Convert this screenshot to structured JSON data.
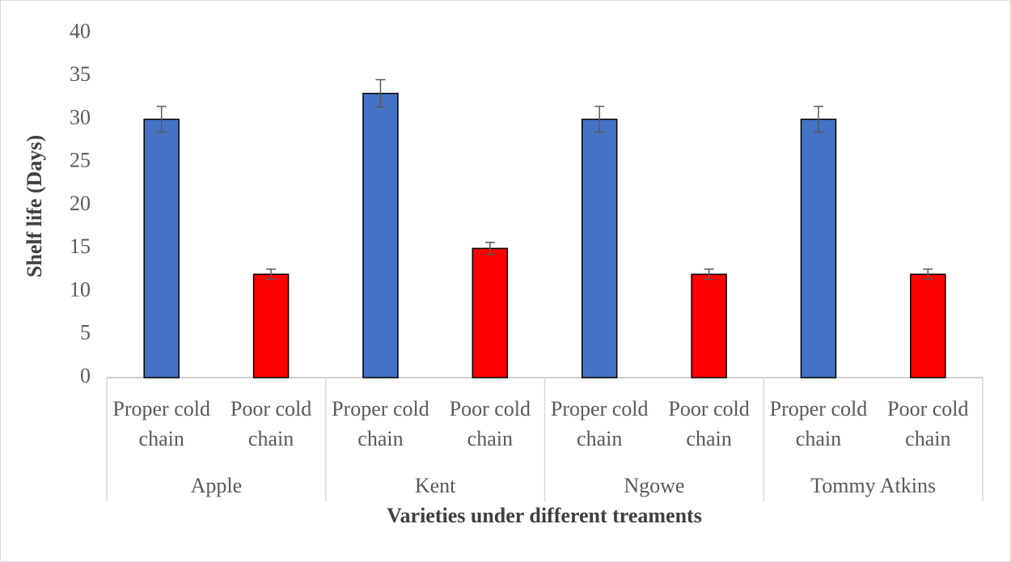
{
  "chart_data": {
    "type": "bar",
    "y_label": "Shelf life (Days)",
    "x_label": "Varieties under different treaments",
    "groups": [
      "Apple",
      "Kent",
      "Ngowe",
      "Tommy Atkins"
    ],
    "series": [
      {
        "name": "Proper cold chain",
        "color": "#4472c4",
        "values": [
          30,
          33,
          30,
          30
        ],
        "errors": [
          1.5,
          1.6,
          1.5,
          1.5
        ]
      },
      {
        "name": "Poor cold chain",
        "color": "#ff0000",
        "values": [
          12,
          15,
          12,
          12
        ],
        "errors": [
          0.6,
          0.7,
          0.6,
          0.6
        ]
      }
    ],
    "ylim": [
      0,
      40
    ],
    "yticks": [
      0,
      5,
      10,
      15,
      20,
      25,
      30,
      35,
      40
    ],
    "grid": false
  }
}
